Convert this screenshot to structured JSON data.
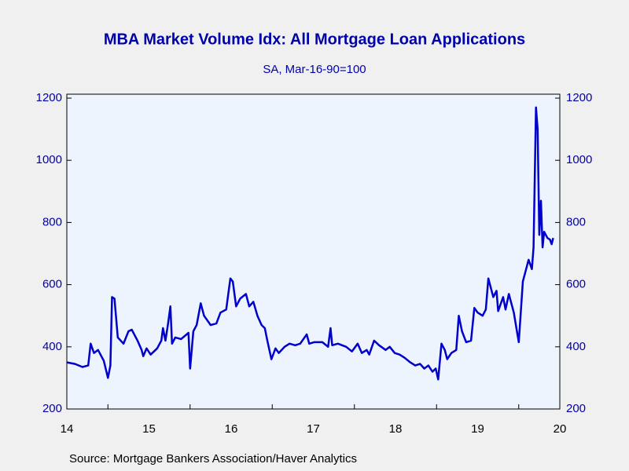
{
  "chart_data": {
    "type": "line",
    "title": "MBA Market Volume Idx: All Mortgage Loan Applications",
    "subtitle": "SA, Mar-16-90=100",
    "source": "Source:  Mortgage Bankers Association/Haver Analytics",
    "color": "#0000cc",
    "x": [
      2014.5,
      2014.6,
      2014.69,
      2014.76,
      2014.79,
      2014.83,
      2014.88,
      2014.95,
      2015.0,
      2015.03,
      2015.05,
      2015.08,
      2015.12,
      2015.19,
      2015.25,
      2015.29,
      2015.36,
      2015.41,
      2015.43,
      2015.47,
      2015.52,
      2015.6,
      2015.65,
      2015.67,
      2015.7,
      2015.73,
      2015.76,
      2015.78,
      2015.82,
      2015.89,
      2015.98,
      2016.0,
      2016.04,
      2016.08,
      2016.13,
      2016.17,
      2016.25,
      2016.32,
      2016.37,
      2016.44,
      2016.49,
      2016.52,
      2016.56,
      2016.61,
      2016.68,
      2016.72,
      2016.77,
      2016.82,
      2016.87,
      2016.91,
      2016.94,
      2016.99,
      2017.04,
      2017.08,
      2017.15,
      2017.21,
      2017.28,
      2017.34,
      2017.42,
      2017.45,
      2017.51,
      2017.61,
      2017.68,
      2017.71,
      2017.73,
      2017.8,
      2017.9,
      2017.97,
      2018.04,
      2018.09,
      2018.15,
      2018.18,
      2018.24,
      2018.3,
      2018.38,
      2018.43,
      2018.49,
      2018.55,
      2018.61,
      2018.68,
      2018.74,
      2018.8,
      2018.85,
      2018.9,
      2018.95,
      2018.99,
      2019.02,
      2019.06,
      2019.1,
      2019.13,
      2019.18,
      2019.24,
      2019.27,
      2019.31,
      2019.36,
      2019.42,
      2019.46,
      2019.5,
      2019.56,
      2019.6,
      2019.63,
      2019.69,
      2019.73,
      2019.75,
      2019.81,
      2019.84,
      2019.88,
      2019.94,
      2020.0,
      2020.05,
      2020.12,
      2020.16,
      2020.18,
      2020.21,
      2020.23,
      2020.25,
      2020.27,
      2020.29,
      2020.31,
      2020.35,
      2020.38,
      2020.4,
      2020.42
    ],
    "values": [
      350,
      345,
      335,
      340,
      410,
      380,
      390,
      355,
      300,
      340,
      560,
      555,
      430,
      410,
      450,
      455,
      420,
      390,
      370,
      395,
      375,
      395,
      420,
      460,
      420,
      470,
      530,
      410,
      430,
      425,
      445,
      330,
      450,
      470,
      540,
      500,
      470,
      475,
      510,
      520,
      620,
      610,
      530,
      555,
      570,
      530,
      545,
      500,
      470,
      460,
      420,
      360,
      395,
      380,
      400,
      410,
      405,
      410,
      440,
      410,
      415,
      415,
      400,
      460,
      405,
      410,
      400,
      385,
      410,
      380,
      390,
      375,
      420,
      405,
      390,
      400,
      380,
      375,
      365,
      350,
      340,
      345,
      330,
      340,
      320,
      330,
      295,
      410,
      390,
      360,
      380,
      390,
      500,
      450,
      415,
      420,
      525,
      510,
      500,
      520,
      620,
      560,
      580,
      515,
      560,
      520,
      570,
      510,
      415,
      610,
      680,
      650,
      720,
      1170,
      1100,
      760,
      870,
      720,
      770,
      750,
      745,
      730,
      750
    ],
    "xlim": [
      2014.5,
      2020.5
    ],
    "xticks": [
      {
        "value": 2014.5,
        "label": "14"
      },
      {
        "value": 2015.5,
        "label": "15"
      },
      {
        "value": 2016.5,
        "label": "16"
      },
      {
        "value": 2017.5,
        "label": "17"
      },
      {
        "value": 2018.5,
        "label": "18"
      },
      {
        "value": 2019.5,
        "label": "19"
      },
      {
        "value": 2020.5,
        "label": "20"
      }
    ],
    "xminor": [
      2015,
      2016,
      2017,
      2018,
      2019,
      2020
    ],
    "ylim": [
      200,
      1200
    ],
    "yticks": [
      200,
      400,
      600,
      800,
      1000,
      1200
    ],
    "y2lim": [
      200,
      1200
    ],
    "y2ticks": [
      200,
      400,
      600,
      800,
      1000,
      1200
    ]
  }
}
